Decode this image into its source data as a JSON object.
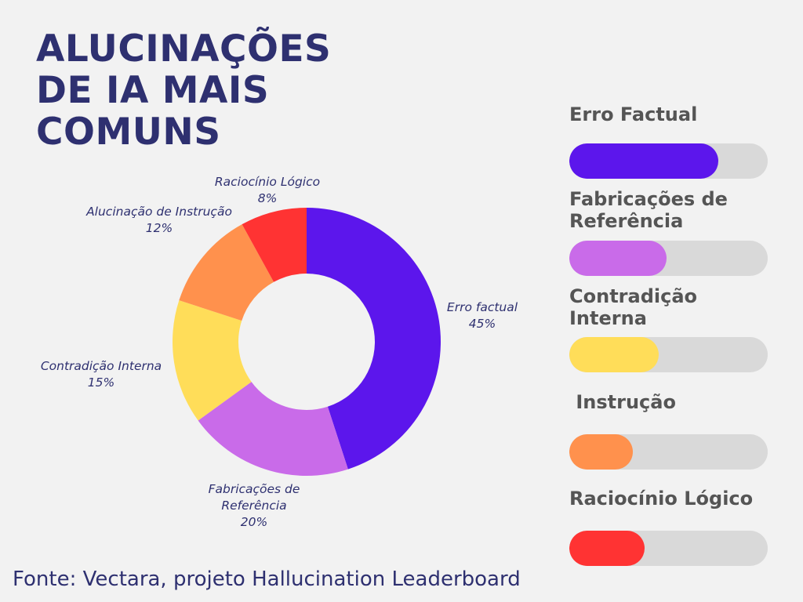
{
  "title_lines": [
    "ALUCINAÇÕES",
    "DE IA MAIS",
    "COMUNS"
  ],
  "chart_data": [
    {
      "type": "pie",
      "categories": [
        "Erro factual",
        "Fabricações de Referência",
        "Contradição Interna",
        "Alucinação de Instrução",
        "Raciocínio Lógico"
      ],
      "values": [
        45,
        20,
        15,
        12,
        8
      ],
      "value_labels": [
        "45%",
        "20%",
        "15%",
        "12%",
        "8%"
      ],
      "label_lines": [
        [
          "Erro factual",
          "45%"
        ],
        [
          "Fabricações de",
          "Referência",
          "20%"
        ],
        [
          "Contradição Interna",
          "15%"
        ],
        [
          "Alucinação de Instrução",
          "12%"
        ],
        [
          "Raciocínio Lógico",
          "8%"
        ]
      ],
      "colors": [
        "#5c16ec",
        "#c96be9",
        "#ffdd59",
        "#ff914d",
        "#ff3333"
      ],
      "hole": "donut"
    },
    {
      "type": "bar",
      "orientation": "horizontal",
      "categories": [
        "Erro Factual",
        "Fabricações de Referência",
        "Contradição Interna",
        "Instrução",
        "Raciocínio Lógico"
      ],
      "title_lines": [
        [
          "Erro Factual"
        ],
        [
          "Fabricações de",
          "Referência"
        ],
        [
          "Contradição",
          "Interna"
        ],
        [
          " Instrução"
        ],
        [
          "Raciocínio Lógico"
        ]
      ],
      "values": [
        0.75,
        0.49,
        0.45,
        0.32,
        0.38
      ],
      "colors": [
        "#5c16ec",
        "#c96be9",
        "#ffdd59",
        "#ff914d",
        "#ff3333"
      ],
      "track_color": "#d9d9d9"
    }
  ],
  "source": "Fonte:  Vectara, projeto Hallucination Leaderboard"
}
